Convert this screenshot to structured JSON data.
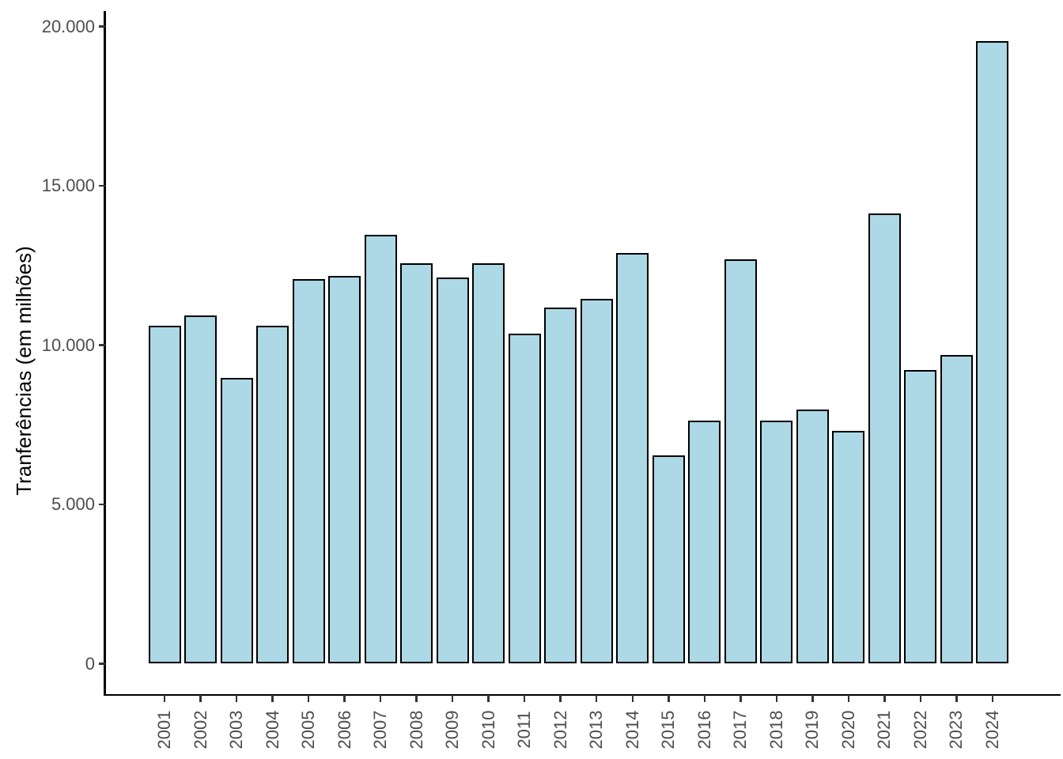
{
  "chart_data": {
    "type": "bar",
    "title": "",
    "xlabel": "",
    "ylabel": "Tranferências (em milhões)",
    "categories": [
      "2001",
      "2002",
      "2003",
      "2004",
      "2005",
      "2006",
      "2007",
      "2008",
      "2009",
      "2010",
      "2011",
      "2012",
      "2013",
      "2014",
      "2015",
      "2016",
      "2017",
      "2018",
      "2019",
      "2020",
      "2021",
      "2022",
      "2023",
      "2024"
    ],
    "values": [
      10600,
      10920,
      8980,
      10600,
      12060,
      12160,
      13450,
      12580,
      12130,
      12560,
      10370,
      11170,
      11440,
      12900,
      6550,
      7640,
      12680,
      7640,
      7990,
      7320,
      14140,
      9230,
      9680,
      19530
    ],
    "ylim": [
      0,
      20000
    ],
    "y_ticks": [
      {
        "value": 0,
        "label": "0"
      },
      {
        "value": 5000,
        "label": "5.000"
      },
      {
        "value": 10000,
        "label": "10.000"
      },
      {
        "value": 15000,
        "label": "15.000"
      },
      {
        "value": 20000,
        "label": "20.000"
      }
    ],
    "grid": false,
    "legend": "none",
    "bar_fill_color": "#ADD8E6",
    "bar_stroke_color": "#000000",
    "axis_line_color": "#000000",
    "axis_text_color": "#4d4d4d"
  }
}
